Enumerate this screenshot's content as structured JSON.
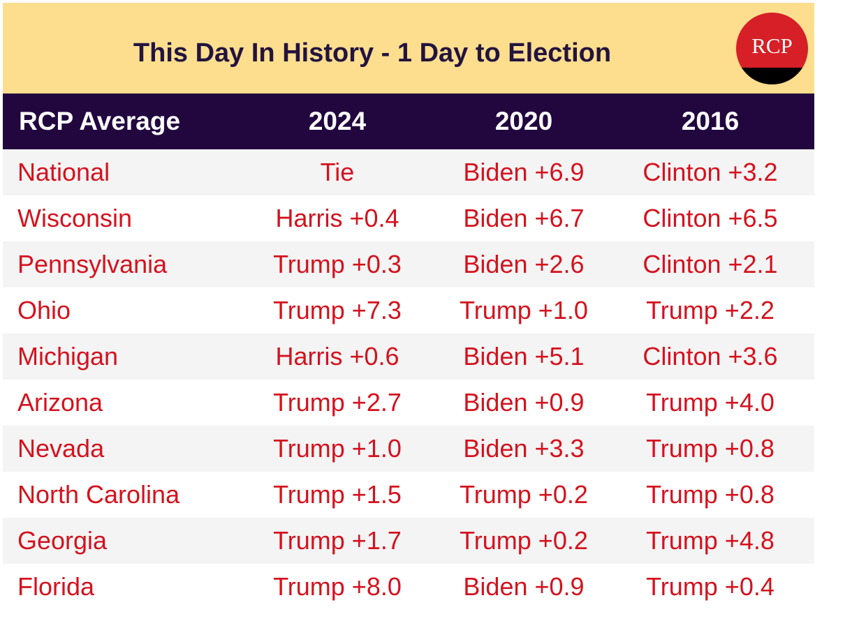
{
  "header": {
    "title": "This Day In History - 1 Day to Election",
    "logo_text": "RCP"
  },
  "colors": {
    "banner_background": "#fdde8e",
    "title_text": "#22133f",
    "table_header_background": "#22073f",
    "table_header_text": "#ffffff",
    "cell_text": "#d4121e",
    "row_stripe": "#f4f4f4",
    "logo_red": "#d61f26",
    "logo_black": "#000000"
  },
  "table": {
    "columns": [
      "RCP Average",
      "2024",
      "2020",
      "2016"
    ],
    "rows": [
      [
        "National",
        "Tie",
        "Biden +6.9",
        "Clinton +3.2"
      ],
      [
        "Wisconsin",
        "Harris +0.4",
        "Biden +6.7",
        "Clinton +6.5"
      ],
      [
        "Pennsylvania",
        "Trump +0.3",
        "Biden +2.6",
        "Clinton +2.1"
      ],
      [
        "Ohio",
        "Trump +7.3",
        "Trump +1.0",
        "Trump +2.2"
      ],
      [
        "Michigan",
        "Harris +0.6",
        "Biden +5.1",
        "Clinton +3.6"
      ],
      [
        "Arizona",
        "Trump +2.7",
        "Biden +0.9",
        "Trump +4.0"
      ],
      [
        "Nevada",
        "Trump +1.0",
        "Biden +3.3",
        "Trump +0.8"
      ],
      [
        "North Carolina",
        "Trump +1.5",
        "Trump +0.2",
        "Trump +0.8"
      ],
      [
        "Georgia",
        "Trump +1.7",
        "Trump +0.2",
        "Trump +4.8"
      ],
      [
        "Florida",
        "Trump +8.0",
        "Biden +0.9",
        "Trump +0.4"
      ]
    ]
  }
}
